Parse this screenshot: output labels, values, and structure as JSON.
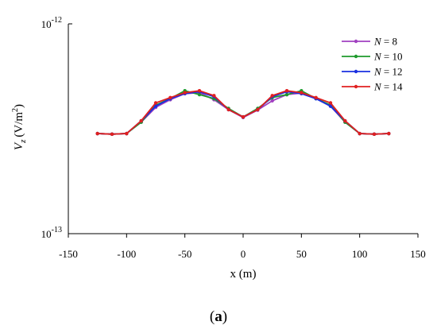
{
  "panel_label": {
    "open": "(",
    "letter": "a",
    "close": ")"
  },
  "chart_data": {
    "type": "line",
    "xlabel": "x (m)",
    "ylabel": {
      "symbol": "V",
      "subscript": "z",
      "unit_open": "(V/m",
      "unit_sup": "2",
      "unit_close": ")"
    },
    "x_ticks": [
      "-150",
      "-100",
      "-50",
      "0",
      "50",
      "100",
      "150"
    ],
    "y_ticks": [
      {
        "base": "10",
        "exp": "-13"
      },
      {
        "base": "10",
        "exp": "-12"
      }
    ],
    "xlim": [
      -150,
      150
    ],
    "ylim": [
      1e-13,
      1e-12
    ],
    "yscale": "log",
    "grid": false,
    "legend_position": "top-right",
    "series": [
      {
        "name": {
          "var": "N",
          "rest": " = 8"
        },
        "color": "#a040c0",
        "x": [
          -125,
          -112.5,
          -100,
          -87.5,
          -75,
          -62.5,
          -50,
          -37.5,
          -25,
          -12.5,
          0,
          12.5,
          25,
          37.5,
          50,
          62.5,
          75,
          87.5,
          100,
          112.5,
          125
        ],
        "y": [
          3e-13,
          2.98e-13,
          3e-13,
          3.4e-13,
          4e-13,
          4.35e-13,
          4.65e-13,
          4.7e-13,
          4.35e-13,
          3.9e-13,
          3.58e-13,
          3.88e-13,
          4.3e-13,
          4.6e-13,
          4.68e-13,
          4.4e-13,
          4.05e-13,
          3.4e-13,
          3e-13,
          2.98e-13,
          3e-13
        ]
      },
      {
        "name": {
          "var": "N",
          "rest": " = 10"
        },
        "color": "#1e9a2c",
        "x": [
          -125,
          -112.5,
          -100,
          -87.5,
          -75,
          -62.5,
          -50,
          -37.5,
          -25,
          -12.5,
          0,
          12.5,
          25,
          37.5,
          50,
          62.5,
          75,
          87.5,
          100,
          112.5,
          125
        ],
        "y": [
          3e-13,
          2.98e-13,
          3e-13,
          3.4e-13,
          4.1e-13,
          4.4e-13,
          4.8e-13,
          4.6e-13,
          4.4e-13,
          3.95e-13,
          3.6e-13,
          3.95e-13,
          4.45e-13,
          4.6e-13,
          4.8e-13,
          4.4e-13,
          4.1e-13,
          3.4e-13,
          3e-13,
          2.98e-13,
          3e-13
        ]
      },
      {
        "name": {
          "var": "N",
          "rest": " = 12"
        },
        "color": "#1a2fe0",
        "x": [
          -125,
          -112.5,
          -100,
          -87.5,
          -75,
          -62.5,
          -50,
          -37.5,
          -25,
          -12.5,
          0,
          12.5,
          25,
          37.5,
          50,
          62.5,
          75,
          87.5,
          100,
          112.5,
          125
        ],
        "y": [
          3e-13,
          2.98e-13,
          3e-13,
          3.45e-13,
          4.05e-13,
          4.4e-13,
          4.65e-13,
          4.75e-13,
          4.5e-13,
          3.9e-13,
          3.6e-13,
          3.9e-13,
          4.5e-13,
          4.75e-13,
          4.65e-13,
          4.4e-13,
          4.05e-13,
          3.45e-13,
          3e-13,
          2.98e-13,
          3e-13
        ]
      },
      {
        "name": {
          "var": "N",
          "rest": " = 14"
        },
        "color": "#e02020",
        "x": [
          -125,
          -112.5,
          -100,
          -87.5,
          -75,
          -62.5,
          -50,
          -37.5,
          -25,
          -12.5,
          0,
          12.5,
          25,
          37.5,
          50,
          62.5,
          75,
          87.5,
          100,
          112.5,
          125
        ],
        "y": [
          3e-13,
          2.98e-13,
          3e-13,
          3.45e-13,
          4.2e-13,
          4.45e-13,
          4.7e-13,
          4.8e-13,
          4.55e-13,
          3.9e-13,
          3.6e-13,
          3.9e-13,
          4.55e-13,
          4.8e-13,
          4.7e-13,
          4.45e-13,
          4.2e-13,
          3.45e-13,
          3e-13,
          2.98e-13,
          3e-13
        ]
      }
    ]
  }
}
